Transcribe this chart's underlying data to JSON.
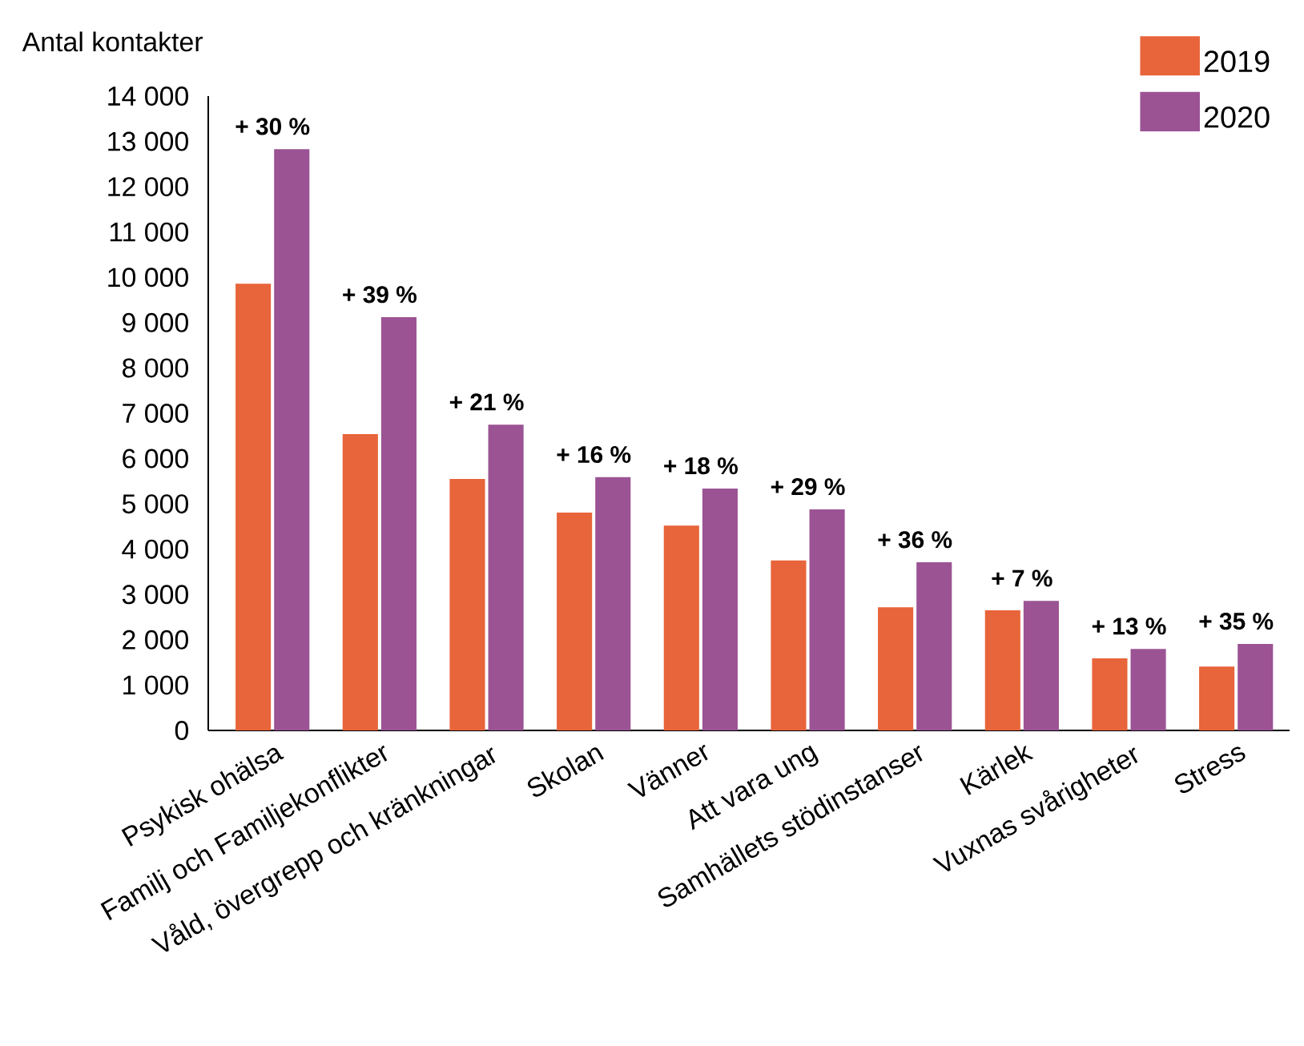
{
  "chart_data": {
    "type": "bar",
    "ylabel": "Antal kontakter",
    "categories": [
      "Psykisk ohälsa",
      "Familj och Familjekonflikter",
      "Våld, övergrepp och kränkningar",
      "Skolan",
      "Vänner",
      "Att vara ung",
      "Samhällets stödinstanser",
      "Kärlek",
      "Vuxnas svårigheter",
      "Stress"
    ],
    "series": [
      {
        "name": "2019",
        "color": "#e8643a",
        "values": [
          9860,
          6540,
          5550,
          4810,
          4520,
          3750,
          2720,
          2650,
          1590,
          1410
        ]
      },
      {
        "name": "2020",
        "color": "#9b5394",
        "values": [
          12830,
          9120,
          6750,
          5590,
          5340,
          4880,
          3710,
          2860,
          1800,
          1910
        ]
      }
    ],
    "ylim": [
      0,
      14000
    ],
    "yticks": [
      0,
      {
        "value": 1000,
        "label": "1 000"
      },
      {
        "value": 2000,
        "label": "2 000"
      },
      {
        "value": 3000,
        "label": "3 000"
      },
      {
        "value": 4000,
        "label": "4 000"
      },
      {
        "value": 5000,
        "label": "5 000"
      },
      {
        "value": 6000,
        "label": "6 000"
      },
      {
        "value": 7000,
        "label": "7 000"
      },
      {
        "value": 8000,
        "label": "8 000"
      },
      {
        "value": 9000,
        "label": "9 000"
      },
      {
        "value": 10000,
        "label": "10 000"
      },
      {
        "value": 11000,
        "label": "11 000"
      },
      {
        "value": 12000,
        "label": "12 000"
      },
      {
        "value": 13000,
        "label": "13 000"
      },
      {
        "value": 14000,
        "label": "14 000"
      }
    ],
    "legend": "top right",
    "annotations": [
      {
        "text": "+ 30 %",
        "x": "Psykisk ohälsa",
        "y": 12830
      },
      {
        "text": "+ 39 %",
        "x": "Familj och Familjekonflikter",
        "y": 9120
      },
      {
        "text": "+ 21 %",
        "x": "Våld, övergrepp och kränkningar",
        "y": 6750
      },
      {
        "text": "+ 16 %",
        "x": "Skolan",
        "y": 5590
      },
      {
        "text": "+ 18 %",
        "x": "Vänner",
        "y": 5340
      },
      {
        "text": "+ 29 %",
        "x": "Att vara ung",
        "y": 4880
      },
      {
        "text": "+ 36 %",
        "x": "Samhällets stödinstanser",
        "y": 3710
      },
      {
        "text": "+ 7 %",
        "x": "Kärlek",
        "y": 2860
      },
      {
        "text": "+ 13 %",
        "x": "Vuxnas svårigheter",
        "y": 1800
      },
      {
        "text": "+ 35 %",
        "x": "Stress",
        "y": 1910
      }
    ]
  }
}
